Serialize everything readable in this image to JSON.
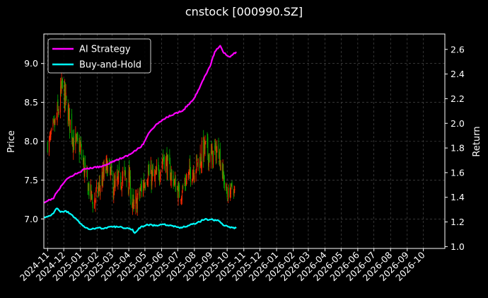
{
  "chart_data": {
    "type": "line",
    "title": "cnstock [000990.SZ]",
    "xlabel": "",
    "ylabel": "Price",
    "y2label": "Return",
    "background": "#000000",
    "grid": true,
    "legend_position": "top-left",
    "x_range": [
      "2024-10-25",
      "2026-11-10"
    ],
    "ylim": [
      6.62,
      9.38
    ],
    "y2lim": [
      0.985,
      2.725
    ],
    "x_ticks": [
      "2024-11",
      "2024-12",
      "2025-01",
      "2025-02",
      "2025-03",
      "2025-04",
      "2025-05",
      "2025-06",
      "2025-07",
      "2025-08",
      "2025-09",
      "2025-10",
      "2025-11",
      "2025-12",
      "2026-01",
      "2026-02",
      "2026-03",
      "2026-04",
      "2026-05",
      "2026-06",
      "2026-07",
      "2026-08",
      "2026-09",
      "2026-10"
    ],
    "y_ticks": [
      "7.0",
      "7.5",
      "8.0",
      "8.5",
      "9.0"
    ],
    "y2_ticks": [
      "1.0",
      "1.2",
      "1.4",
      "1.6",
      "1.8",
      "2.0",
      "2.2",
      "2.4",
      "2.6"
    ],
    "candles": {
      "up_color": "#ff2a00",
      "down_color": "#00b000",
      "anchors": [
        [
          "2024-11-01",
          7.95,
          0.18
        ],
        [
          "2024-11-10",
          8.1,
          0.25
        ],
        [
          "2024-11-20",
          8.35,
          0.35
        ],
        [
          "2024-11-28",
          8.7,
          0.35
        ],
        [
          "2024-12-08",
          8.4,
          0.35
        ],
        [
          "2024-12-20",
          8.0,
          0.3
        ],
        [
          "2025-01-01",
          7.9,
          0.3
        ],
        [
          "2025-01-12",
          7.5,
          0.3
        ],
        [
          "2025-01-25",
          7.2,
          0.25
        ],
        [
          "2025-02-05",
          7.4,
          0.3
        ],
        [
          "2025-02-20",
          7.7,
          0.3
        ],
        [
          "2025-03-05",
          7.4,
          0.3
        ],
        [
          "2025-03-20",
          7.55,
          0.3
        ],
        [
          "2025-04-02",
          7.5,
          0.3
        ],
        [
          "2025-04-10",
          7.1,
          0.3
        ],
        [
          "2025-04-20",
          7.3,
          0.3
        ],
        [
          "2025-05-05",
          7.6,
          0.3
        ],
        [
          "2025-05-20",
          7.5,
          0.3
        ],
        [
          "2025-06-05",
          7.8,
          0.3
        ],
        [
          "2025-06-20",
          7.55,
          0.25
        ],
        [
          "2025-07-05",
          7.3,
          0.2
        ],
        [
          "2025-07-20",
          7.55,
          0.25
        ],
        [
          "2025-08-05",
          7.7,
          0.3
        ],
        [
          "2025-08-20",
          7.9,
          0.35
        ],
        [
          "2025-09-01",
          7.8,
          0.3
        ],
        [
          "2025-09-15",
          7.9,
          0.25
        ],
        [
          "2025-09-25",
          7.5,
          0.25
        ],
        [
          "2025-10-01",
          7.3,
          0.2
        ],
        [
          "2025-10-10",
          7.4,
          0.15
        ],
        [
          "2025-10-15",
          7.35,
          0.15
        ]
      ]
    },
    "series": [
      {
        "name": "AI Strategy",
        "axis": "right",
        "color": "#ff00ff",
        "points": [
          [
            "2024-10-25",
            1.36
          ],
          [
            "2024-11-05",
            1.38
          ],
          [
            "2024-11-12",
            1.39
          ],
          [
            "2024-11-16",
            1.43
          ],
          [
            "2024-11-22",
            1.46
          ],
          [
            "2024-11-28",
            1.5
          ],
          [
            "2024-12-05",
            1.54
          ],
          [
            "2024-12-15",
            1.57
          ],
          [
            "2024-12-28",
            1.6
          ],
          [
            "2025-01-10",
            1.63
          ],
          [
            "2025-01-25",
            1.64
          ],
          [
            "2025-02-10",
            1.65
          ],
          [
            "2025-02-25",
            1.68
          ],
          [
            "2025-03-08",
            1.7
          ],
          [
            "2025-03-20",
            1.72
          ],
          [
            "2025-03-31",
            1.74
          ],
          [
            "2025-04-08",
            1.76
          ],
          [
            "2025-04-20",
            1.8
          ],
          [
            "2025-04-28",
            1.83
          ],
          [
            "2025-05-08",
            1.92
          ],
          [
            "2025-05-20",
            1.98
          ],
          [
            "2025-06-01",
            2.02
          ],
          [
            "2025-06-12",
            2.05
          ],
          [
            "2025-06-25",
            2.08
          ],
          [
            "2025-07-10",
            2.1
          ],
          [
            "2025-07-20",
            2.15
          ],
          [
            "2025-07-31",
            2.2
          ],
          [
            "2025-08-10",
            2.28
          ],
          [
            "2025-08-20",
            2.38
          ],
          [
            "2025-08-30",
            2.46
          ],
          [
            "2025-09-08",
            2.58
          ],
          [
            "2025-09-18",
            2.63
          ],
          [
            "2025-09-25",
            2.57
          ],
          [
            "2025-10-05",
            2.54
          ],
          [
            "2025-10-12",
            2.56
          ],
          [
            "2025-10-18",
            2.58
          ]
        ]
      },
      {
        "name": "Buy-and-Hold",
        "axis": "right",
        "color": "#00ffff",
        "points": [
          [
            "2024-10-25",
            1.24
          ],
          [
            "2024-11-05",
            1.25
          ],
          [
            "2024-11-12",
            1.27
          ],
          [
            "2024-11-18",
            1.31
          ],
          [
            "2024-11-25",
            1.28
          ],
          [
            "2024-12-05",
            1.29
          ],
          [
            "2024-12-15",
            1.26
          ],
          [
            "2024-12-25",
            1.22
          ],
          [
            "2025-01-05",
            1.17
          ],
          [
            "2025-01-18",
            1.14
          ],
          [
            "2025-01-30",
            1.15
          ],
          [
            "2025-02-15",
            1.15
          ],
          [
            "2025-03-01",
            1.16
          ],
          [
            "2025-03-15",
            1.16
          ],
          [
            "2025-03-28",
            1.15
          ],
          [
            "2025-04-08",
            1.14
          ],
          [
            "2025-04-12",
            1.11
          ],
          [
            "2025-04-20",
            1.15
          ],
          [
            "2025-05-05",
            1.18
          ],
          [
            "2025-05-20",
            1.17
          ],
          [
            "2025-06-05",
            1.18
          ],
          [
            "2025-06-20",
            1.17
          ],
          [
            "2025-07-05",
            1.15
          ],
          [
            "2025-07-20",
            1.17
          ],
          [
            "2025-08-05",
            1.19
          ],
          [
            "2025-08-20",
            1.22
          ],
          [
            "2025-09-01",
            1.22
          ],
          [
            "2025-09-15",
            1.21
          ],
          [
            "2025-09-25",
            1.17
          ],
          [
            "2025-10-05",
            1.16
          ],
          [
            "2025-10-18",
            1.15
          ]
        ]
      }
    ]
  }
}
